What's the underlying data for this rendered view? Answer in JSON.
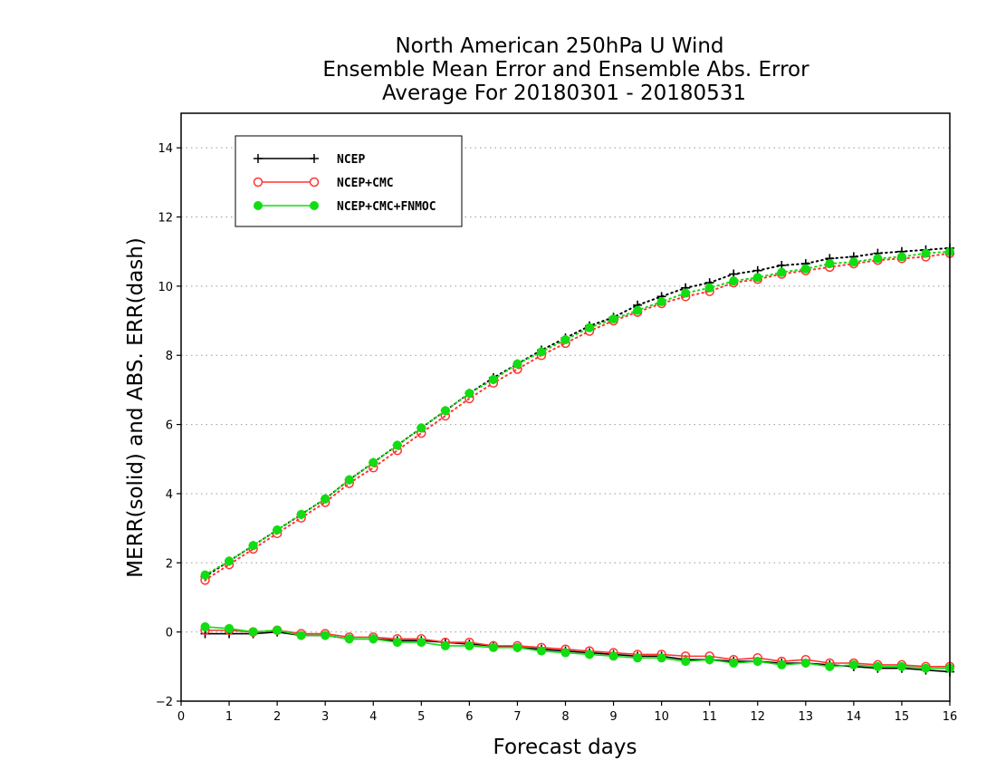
{
  "chart_data": {
    "type": "line",
    "title": [
      "North American 250hPa U Wind",
      "Ensemble Mean Error and Ensemble Abs. Error",
      "Average For 20180301 - 20180531"
    ],
    "xlabel": "Forecast days",
    "ylabel": "MERR(solid) and ABS. ERR(dash)",
    "xlim": [
      0,
      16
    ],
    "ylim": [
      -2,
      15
    ],
    "xticks": [
      0,
      1,
      2,
      3,
      4,
      5,
      6,
      7,
      8,
      9,
      10,
      11,
      12,
      13,
      14,
      15,
      16
    ],
    "yticks": [
      -2,
      0,
      2,
      4,
      6,
      8,
      10,
      12,
      14
    ],
    "grid": true,
    "legend_position": "top-left",
    "x": [
      0.5,
      1,
      1.5,
      2,
      2.5,
      3,
      3.5,
      4,
      4.5,
      5,
      5.5,
      6,
      6.5,
      7,
      7.5,
      8,
      8.5,
      9,
      9.5,
      10,
      10.5,
      11,
      11.5,
      12,
      12.5,
      13,
      13.5,
      14,
      14.5,
      15,
      15.5,
      16
    ],
    "series": [
      {
        "name": "NCEP",
        "color": "#000000",
        "marker": "plus",
        "abs_err": [
          1.6,
          2.05,
          2.5,
          2.95,
          3.4,
          3.85,
          4.4,
          4.9,
          5.4,
          5.9,
          6.4,
          6.9,
          7.35,
          7.75,
          8.15,
          8.5,
          8.85,
          9.1,
          9.45,
          9.7,
          9.95,
          10.1,
          10.35,
          10.45,
          10.6,
          10.65,
          10.8,
          10.85,
          10.95,
          11.0,
          11.05,
          11.1
        ],
        "mean_err": [
          -0.05,
          -0.05,
          -0.05,
          0.0,
          -0.1,
          -0.1,
          -0.2,
          -0.2,
          -0.25,
          -0.25,
          -0.3,
          -0.35,
          -0.4,
          -0.45,
          -0.5,
          -0.55,
          -0.6,
          -0.65,
          -0.7,
          -0.7,
          -0.8,
          -0.8,
          -0.85,
          -0.85,
          -0.9,
          -0.9,
          -0.95,
          -1.0,
          -1.05,
          -1.05,
          -1.1,
          -1.15
        ]
      },
      {
        "name": "NCEP+CMC",
        "color": "#ff3333",
        "marker": "open-circle",
        "abs_err": [
          1.5,
          1.95,
          2.4,
          2.85,
          3.3,
          3.75,
          4.3,
          4.75,
          5.25,
          5.75,
          6.25,
          6.75,
          7.2,
          7.6,
          8.0,
          8.35,
          8.7,
          9.0,
          9.25,
          9.5,
          9.7,
          9.85,
          10.1,
          10.2,
          10.35,
          10.45,
          10.55,
          10.65,
          10.75,
          10.8,
          10.85,
          10.95
        ],
        "mean_err": [
          0.05,
          0.05,
          0.0,
          0.05,
          -0.05,
          -0.05,
          -0.15,
          -0.15,
          -0.2,
          -0.2,
          -0.3,
          -0.3,
          -0.4,
          -0.4,
          -0.45,
          -0.5,
          -0.55,
          -0.6,
          -0.65,
          -0.65,
          -0.7,
          -0.7,
          -0.8,
          -0.75,
          -0.85,
          -0.8,
          -0.9,
          -0.9,
          -0.95,
          -0.95,
          -1.0,
          -1.0
        ]
      },
      {
        "name": "NCEP+CMC+FNMOC",
        "color": "#11dd11",
        "marker": "filled-circle",
        "abs_err": [
          1.65,
          2.05,
          2.5,
          2.95,
          3.4,
          3.85,
          4.4,
          4.9,
          5.4,
          5.9,
          6.4,
          6.9,
          7.3,
          7.75,
          8.1,
          8.45,
          8.8,
          9.05,
          9.3,
          9.55,
          9.8,
          9.95,
          10.15,
          10.25,
          10.4,
          10.5,
          10.65,
          10.7,
          10.8,
          10.85,
          10.95,
          11.0
        ],
        "mean_err": [
          0.15,
          0.1,
          0.0,
          0.05,
          -0.1,
          -0.1,
          -0.2,
          -0.2,
          -0.3,
          -0.3,
          -0.4,
          -0.4,
          -0.45,
          -0.45,
          -0.55,
          -0.6,
          -0.65,
          -0.7,
          -0.75,
          -0.75,
          -0.85,
          -0.8,
          -0.9,
          -0.85,
          -0.95,
          -0.9,
          -1.0,
          -0.95,
          -1.0,
          -1.0,
          -1.05,
          -1.05
        ]
      }
    ]
  }
}
